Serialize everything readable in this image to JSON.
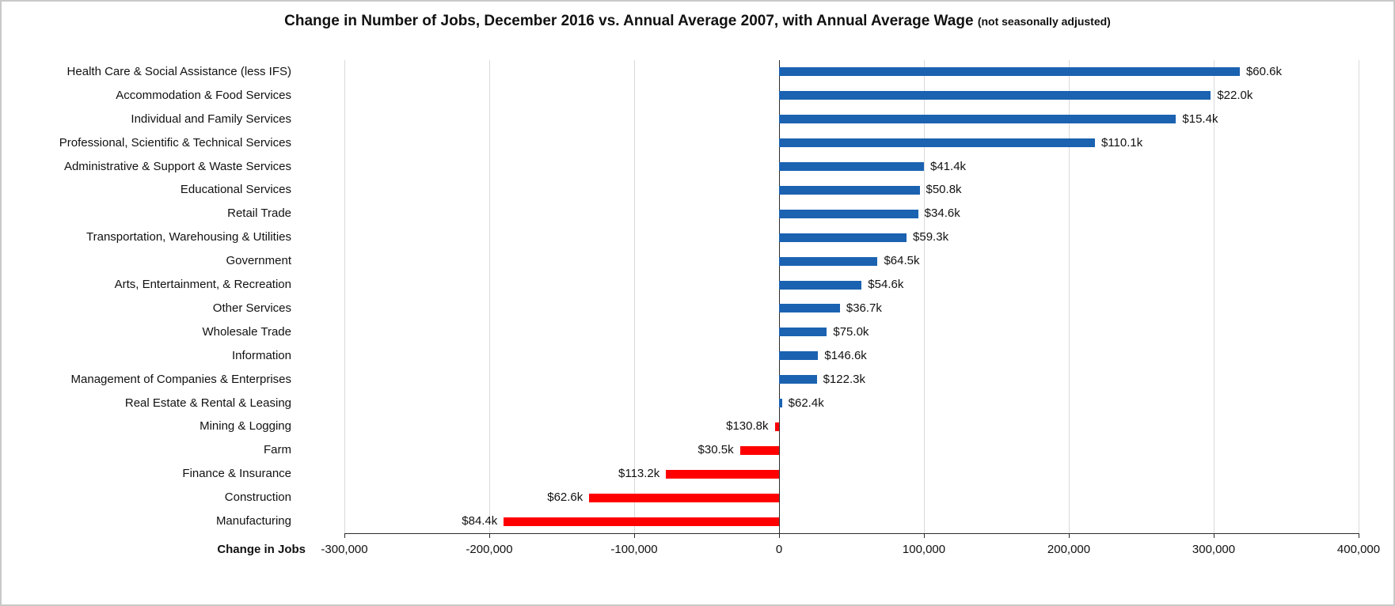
{
  "chart_data": {
    "type": "bar",
    "orientation": "horizontal",
    "title": "Change in Number of Jobs, December 2016 vs. Annual Average 2007, with Annual Average Wage",
    "subtitle": "(not seasonally adjusted)",
    "xlabel": "Change in Jobs",
    "ylabel": "",
    "xlim": [
      -300000,
      400000
    ],
    "x_ticks": [
      -300000,
      -200000,
      -100000,
      0,
      100000,
      200000,
      300000,
      400000
    ],
    "x_tick_labels": [
      "-300,000",
      "-200,000",
      "-100,000",
      "0",
      "100,000",
      "200,000",
      "300,000",
      "400,000"
    ],
    "grid": true,
    "legend": false,
    "categories": [
      "Health Care & Social Assistance (less IFS)",
      "Accommodation & Food Services",
      "Individual and Family Services",
      "Professional, Scientific & Technical Services",
      "Administrative & Support & Waste Services",
      "Educational Services",
      "Retail Trade",
      "Transportation, Warehousing & Utilities",
      "Government",
      "Arts, Entertainment, & Recreation",
      "Other Services",
      "Wholesale Trade",
      "Information",
      "Management of Companies & Enterprises",
      "Real Estate & Rental & Leasing",
      "Mining & Logging",
      "Farm",
      "Finance & Insurance",
      "Construction",
      "Manufacturing"
    ],
    "series": [
      {
        "name": "Change in Jobs, December 2016 vs. Annual Average 2007",
        "values": [
          318000,
          298000,
          274000,
          218000,
          100000,
          97000,
          96000,
          88000,
          68000,
          57000,
          42000,
          33000,
          27000,
          26000,
          2000,
          -3000,
          -27000,
          -78000,
          -131000,
          -190000
        ]
      },
      {
        "name": "Annual Average Wage",
        "labels": [
          "$60.6k",
          "$22.0k",
          "$15.4k",
          "$110.1k",
          "$41.4k",
          "$50.8k",
          "$34.6k",
          "$59.3k",
          "$64.5k",
          "$54.6k",
          "$36.7k",
          "$75.0k",
          "$146.6k",
          "$122.3k",
          "$62.4k",
          "$130.8k",
          "$30.5k",
          "$113.2k",
          "$62.6k",
          "$84.4k"
        ]
      }
    ],
    "colors": {
      "positive": "#1B62B1",
      "negative": "#FE0000",
      "gridline": "#D9D9D9",
      "axis": "#2B2B2B",
      "text": "#111111"
    }
  }
}
